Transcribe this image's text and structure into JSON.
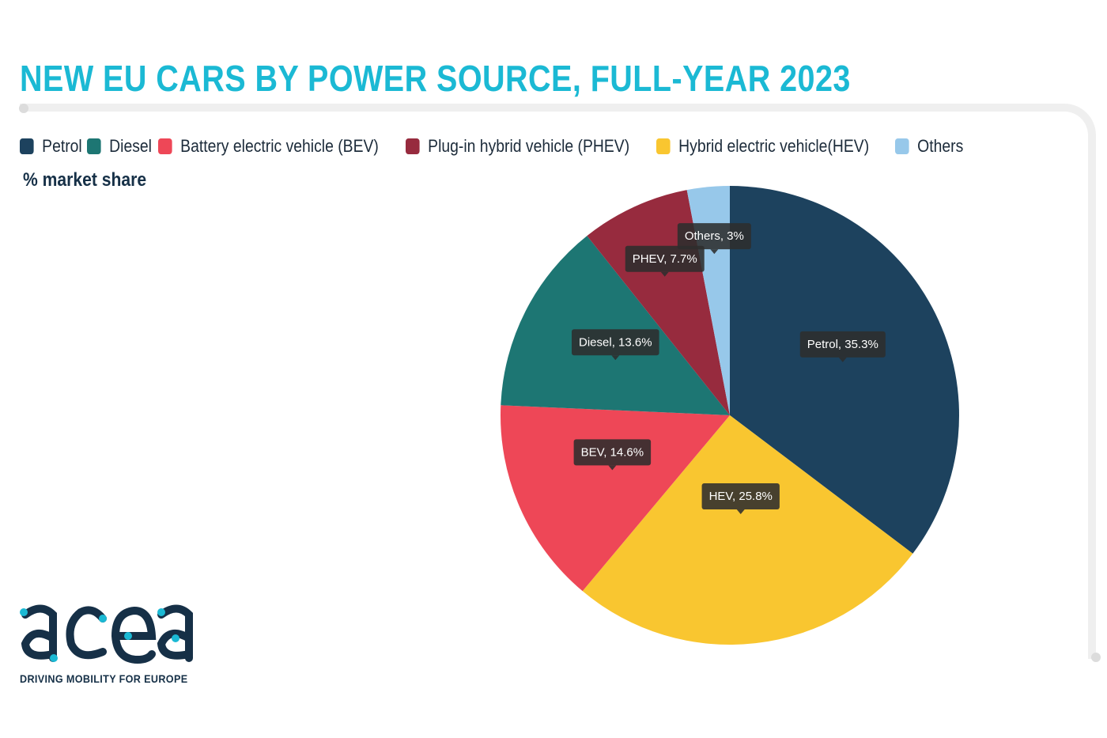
{
  "title": "NEW EU CARS BY POWER SOURCE, FULL-YEAR 2023",
  "subtitle": "% market share",
  "legend": [
    {
      "label": "Petrol",
      "color": "#1d425e"
    },
    {
      "label": "Diesel",
      "color": "#1d7673"
    },
    {
      "label": "Battery electric vehicle (BEV)",
      "color": "#ee4757"
    },
    {
      "label": "Plug-in hybrid vehicle (PHEV)",
      "color": "#972b3e"
    },
    {
      "label": "Hybrid electric vehicle(HEV)",
      "color": "#f9c630"
    },
    {
      "label": "Others",
      "color": "#97c8ea"
    }
  ],
  "chart_data": {
    "type": "pie",
    "title": "NEW EU CARS BY POWER SOURCE, FULL-YEAR 2023",
    "unit": "% market share",
    "slices": [
      {
        "name": "Petrol",
        "label": "Petrol, 35.3%",
        "value": 35.3,
        "color": "#1d425e"
      },
      {
        "name": "HEV",
        "label": "HEV, 25.8%",
        "value": 25.8,
        "color": "#f9c630"
      },
      {
        "name": "BEV",
        "label": "BEV, 14.6%",
        "value": 14.6,
        "color": "#ee4757"
      },
      {
        "name": "Diesel",
        "label": "Diesel, 13.6%",
        "value": 13.6,
        "color": "#1d7673"
      },
      {
        "name": "PHEV",
        "label": "PHEV, 7.7%",
        "value": 7.7,
        "color": "#972b3e"
      },
      {
        "name": "Others",
        "label": "Others, 3%",
        "value": 3,
        "color": "#97c8ea"
      }
    ],
    "legend_position": "top-left"
  },
  "logo": {
    "wordmark": "acea",
    "tagline": "DRIVING MOBILITY FOR EUROPE"
  }
}
